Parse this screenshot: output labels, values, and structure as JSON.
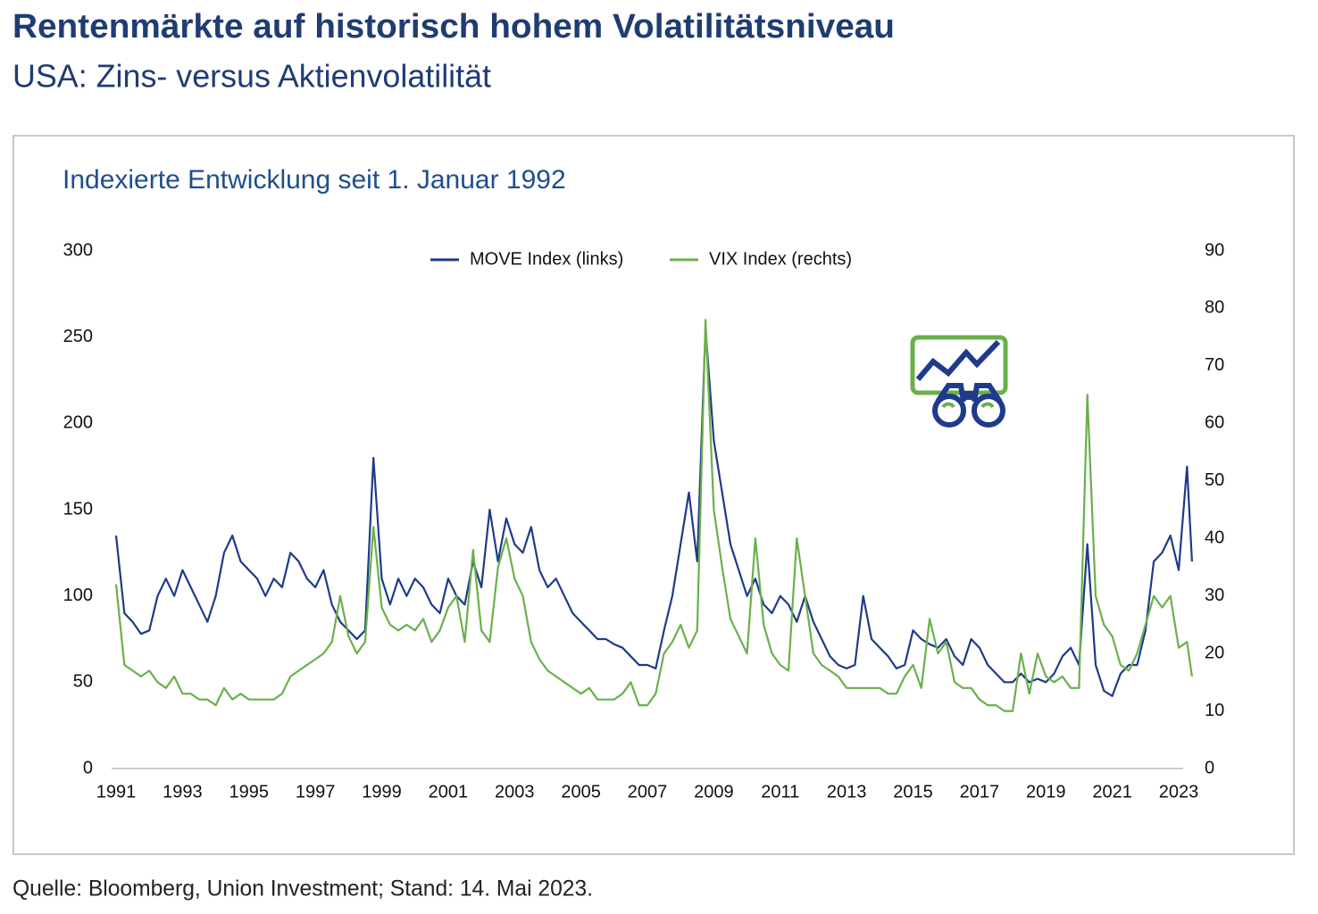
{
  "title": "Rentenmärkte auf historisch hohem Volatilitätsniveau",
  "subtitle": "USA: Zins- versus Aktienvolatilität",
  "source": "Quelle: Bloomberg, Union Investment; Stand: 14. Mai 2023.",
  "chart_data": {
    "type": "line",
    "title": "Indexierte Entwicklung seit 1. Januar 1992",
    "x": [
      1991,
      1991.25,
      1991.5,
      1991.75,
      1992,
      1992.25,
      1992.5,
      1992.75,
      1993,
      1993.25,
      1993.5,
      1993.75,
      1994,
      1994.25,
      1994.5,
      1994.75,
      1995,
      1995.25,
      1995.5,
      1995.75,
      1996,
      1996.25,
      1996.5,
      1996.75,
      1997,
      1997.25,
      1997.5,
      1997.75,
      1998,
      1998.25,
      1998.5,
      1998.75,
      1999,
      1999.25,
      1999.5,
      1999.75,
      2000,
      2000.25,
      2000.5,
      2000.75,
      2001,
      2001.25,
      2001.5,
      2001.75,
      2002,
      2002.25,
      2002.5,
      2002.75,
      2003,
      2003.25,
      2003.5,
      2003.75,
      2004,
      2004.25,
      2004.5,
      2004.75,
      2005,
      2005.25,
      2005.5,
      2005.75,
      2006,
      2006.25,
      2006.5,
      2006.75,
      2007,
      2007.25,
      2007.5,
      2007.75,
      2008,
      2008.25,
      2008.5,
      2008.75,
      2009,
      2009.25,
      2009.5,
      2009.75,
      2010,
      2010.25,
      2010.5,
      2010.75,
      2011,
      2011.25,
      2011.5,
      2011.75,
      2012,
      2012.25,
      2012.5,
      2012.75,
      2013,
      2013.25,
      2013.5,
      2013.75,
      2014,
      2014.25,
      2014.5,
      2014.75,
      2015,
      2015.25,
      2015.5,
      2015.75,
      2016,
      2016.25,
      2016.5,
      2016.75,
      2017,
      2017.25,
      2017.5,
      2017.75,
      2018,
      2018.25,
      2018.5,
      2018.75,
      2019,
      2019.25,
      2019.5,
      2019.75,
      2020,
      2020.25,
      2020.5,
      2020.75,
      2021,
      2021.25,
      2021.5,
      2021.75,
      2022,
      2022.25,
      2022.5,
      2022.75,
      2023,
      2023.25,
      2023.4
    ],
    "series": [
      {
        "name": "MOVE Index (links)",
        "color": "#1f3a8a",
        "axis": "y",
        "values": [
          135,
          90,
          85,
          78,
          80,
          100,
          110,
          100,
          115,
          105,
          95,
          85,
          100,
          125,
          135,
          120,
          115,
          110,
          100,
          110,
          105,
          125,
          120,
          110,
          105,
          115,
          95,
          85,
          80,
          75,
          80,
          180,
          110,
          95,
          110,
          100,
          110,
          105,
          95,
          90,
          110,
          100,
          95,
          120,
          105,
          150,
          120,
          145,
          130,
          125,
          140,
          115,
          105,
          110,
          100,
          90,
          85,
          80,
          75,
          75,
          72,
          70,
          65,
          60,
          60,
          58,
          80,
          100,
          130,
          160,
          120,
          255,
          190,
          160,
          130,
          115,
          100,
          110,
          95,
          90,
          100,
          95,
          85,
          100,
          85,
          75,
          65,
          60,
          58,
          60,
          100,
          75,
          70,
          65,
          58,
          60,
          80,
          75,
          72,
          70,
          75,
          65,
          60,
          75,
          70,
          60,
          55,
          50,
          50,
          55,
          50,
          52,
          50,
          55,
          65,
          70,
          60,
          130,
          60,
          45,
          42,
          55,
          60,
          60,
          80,
          120,
          125,
          135,
          115,
          175,
          120
        ]
      },
      {
        "name": "VIX Index (rechts)",
        "color": "#6ab04c",
        "axis": "y2",
        "values": [
          32,
          18,
          17,
          16,
          17,
          15,
          14,
          16,
          13,
          13,
          12,
          12,
          11,
          14,
          12,
          13,
          12,
          12,
          12,
          12,
          13,
          16,
          17,
          18,
          19,
          20,
          22,
          30,
          23,
          20,
          22,
          42,
          28,
          25,
          24,
          25,
          24,
          26,
          22,
          24,
          28,
          30,
          22,
          38,
          24,
          22,
          35,
          40,
          33,
          30,
          22,
          19,
          17,
          16,
          15,
          14,
          13,
          14,
          12,
          12,
          12,
          13,
          15,
          11,
          11,
          13,
          20,
          22,
          25,
          21,
          24,
          78,
          45,
          35,
          26,
          23,
          20,
          40,
          25,
          20,
          18,
          17,
          40,
          30,
          20,
          18,
          17,
          16,
          14,
          14,
          14,
          14,
          14,
          13,
          13,
          16,
          18,
          14,
          26,
          20,
          22,
          15,
          14,
          14,
          12,
          11,
          11,
          10,
          10,
          20,
          13,
          20,
          16,
          15,
          16,
          14,
          14,
          65,
          30,
          25,
          23,
          18,
          17,
          20,
          25,
          30,
          28,
          30,
          21,
          22,
          16
        ]
      }
    ],
    "xlim": [
      1991,
      2023
    ],
    "xticks": [
      1991,
      1993,
      1995,
      1997,
      1999,
      2001,
      2003,
      2005,
      2007,
      2009,
      2011,
      2013,
      2015,
      2017,
      2019,
      2021,
      2023
    ],
    "ylim": [
      0,
      300
    ],
    "yticks": [
      0,
      50,
      100,
      150,
      200,
      250,
      300
    ],
    "y2lim": [
      0,
      90
    ],
    "y2ticks": [
      0,
      10,
      20,
      30,
      40,
      50,
      60,
      70,
      80,
      90
    ],
    "legend": "top"
  }
}
